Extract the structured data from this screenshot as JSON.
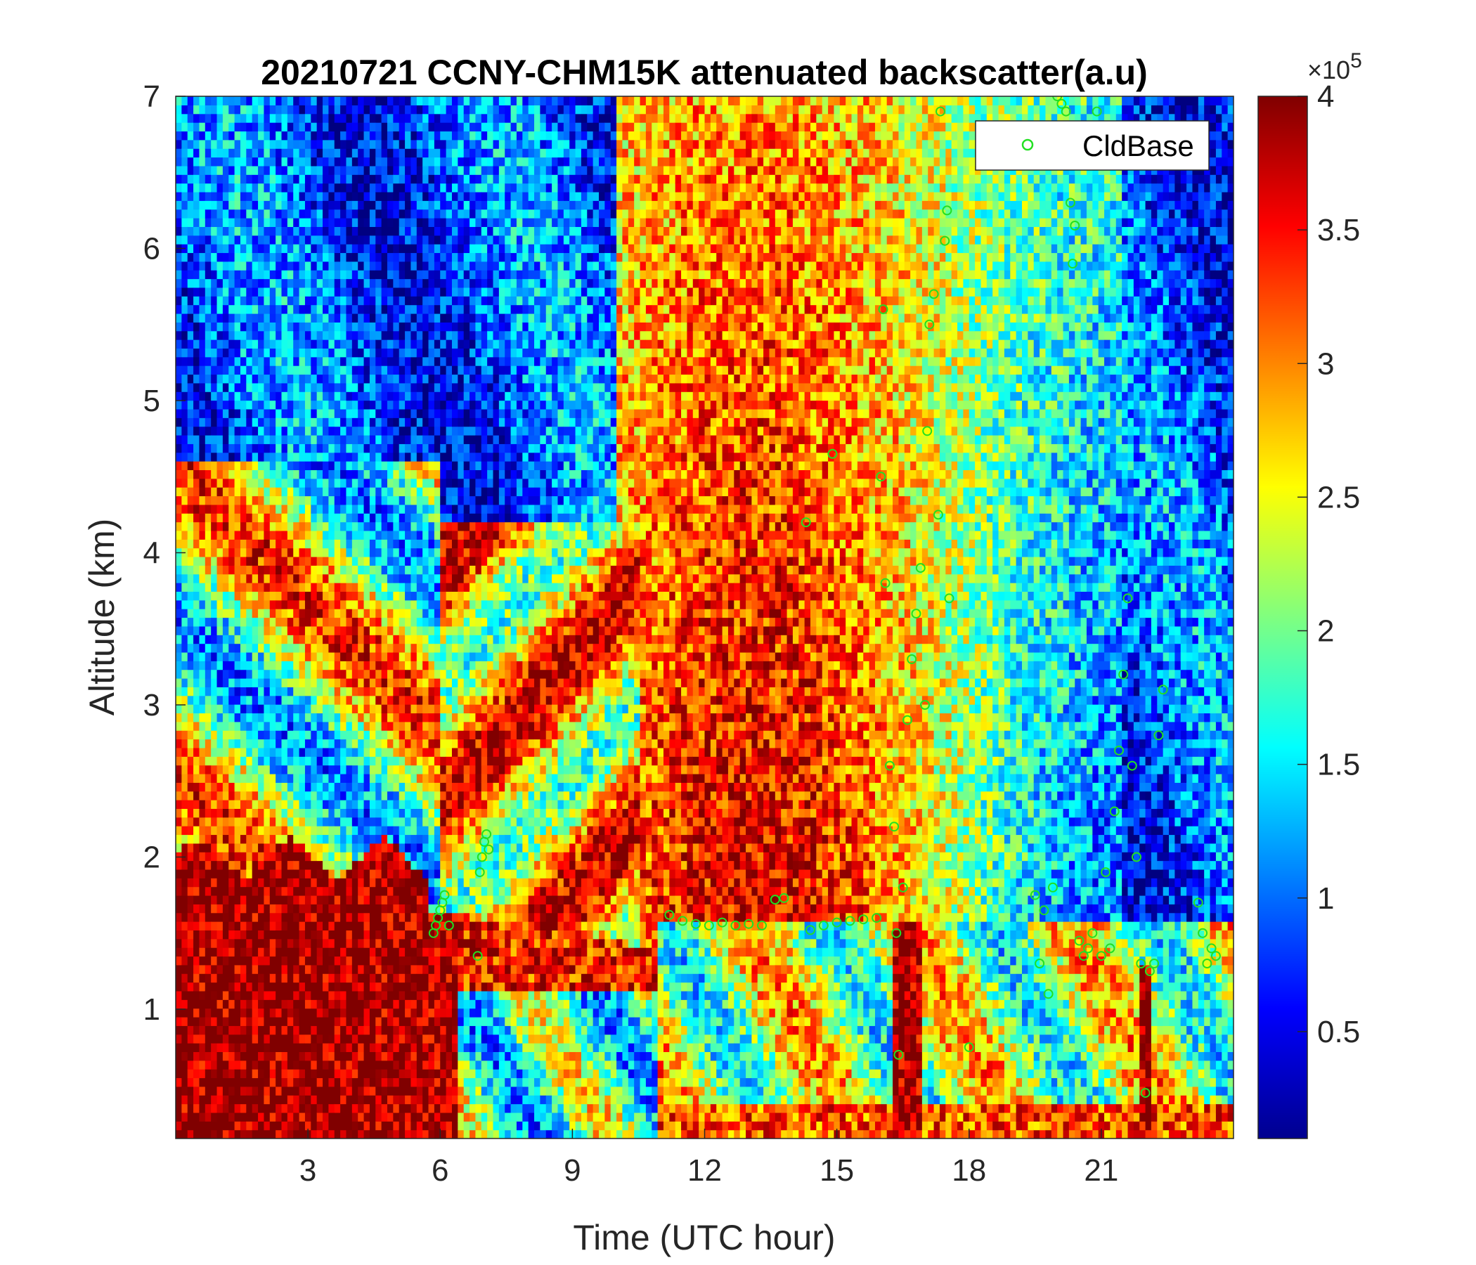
{
  "chart_data": {
    "type": "heatmap",
    "title": "20210721 CCNY-CHM15K attenuated backscatter(a.u)",
    "xlabel": "Time (UTC hour)",
    "ylabel": "Altitude (km)",
    "xlim": [
      0,
      24
    ],
    "ylim": [
      0.15,
      7
    ],
    "xticks": [
      "3",
      "6",
      "9",
      "12",
      "15",
      "18",
      "21"
    ],
    "yticks": [
      "1",
      "2",
      "3",
      "4",
      "5",
      "6",
      "7"
    ],
    "colormap": "jet",
    "colorbar": {
      "range": [
        0.1,
        4
      ],
      "ticks": [
        "0.5",
        "1",
        "1.5",
        "2",
        "2.5",
        "3",
        "3.5",
        "4"
      ],
      "exponent_label": "×10",
      "exponent_power": "5"
    },
    "legend": {
      "placement": "top-right",
      "entries": [
        "CldBase"
      ]
    },
    "cloud_base_series": {
      "name": "CldBase",
      "color": "#22e022",
      "marker": "circle",
      "points": [
        [
          5.85,
          1.5
        ],
        [
          5.9,
          1.55
        ],
        [
          5.95,
          1.6
        ],
        [
          6.0,
          1.65
        ],
        [
          6.05,
          1.7
        ],
        [
          6.1,
          1.75
        ],
        [
          6.2,
          1.55
        ],
        [
          6.85,
          1.35
        ],
        [
          6.9,
          1.9
        ],
        [
          6.95,
          2.0
        ],
        [
          7.0,
          2.1
        ],
        [
          7.05,
          2.15
        ],
        [
          7.1,
          2.05
        ],
        [
          11.2,
          1.62
        ],
        [
          11.5,
          1.58
        ],
        [
          11.8,
          1.56
        ],
        [
          12.1,
          1.55
        ],
        [
          12.4,
          1.57
        ],
        [
          12.7,
          1.55
        ],
        [
          13.0,
          1.56
        ],
        [
          13.3,
          1.55
        ],
        [
          13.6,
          1.72
        ],
        [
          13.8,
          1.73
        ],
        [
          14.3,
          4.2
        ],
        [
          14.4,
          1.52
        ],
        [
          14.7,
          1.55
        ],
        [
          14.9,
          4.65
        ],
        [
          15.0,
          1.57
        ],
        [
          15.3,
          1.58
        ],
        [
          15.6,
          1.59
        ],
        [
          15.9,
          1.6
        ],
        [
          16.0,
          4.5
        ],
        [
          16.05,
          5.6
        ],
        [
          16.1,
          3.8
        ],
        [
          16.2,
          2.6
        ],
        [
          16.3,
          2.2
        ],
        [
          16.35,
          1.5
        ],
        [
          16.4,
          0.7
        ],
        [
          16.5,
          1.8
        ],
        [
          16.6,
          2.9
        ],
        [
          16.7,
          3.3
        ],
        [
          16.8,
          3.6
        ],
        [
          16.9,
          3.9
        ],
        [
          17.0,
          3.0
        ],
        [
          17.05,
          4.8
        ],
        [
          17.1,
          5.5
        ],
        [
          17.2,
          5.7
        ],
        [
          17.3,
          4.25
        ],
        [
          17.35,
          6.9
        ],
        [
          17.45,
          6.05
        ],
        [
          17.5,
          6.25
        ],
        [
          17.55,
          3.7
        ],
        [
          18.0,
          0.75
        ],
        [
          19.5,
          1.75
        ],
        [
          19.6,
          1.3
        ],
        [
          19.7,
          1.65
        ],
        [
          19.8,
          1.1
        ],
        [
          19.9,
          1.8
        ],
        [
          20.0,
          7.0
        ],
        [
          20.1,
          6.95
        ],
        [
          20.2,
          6.9
        ],
        [
          20.3,
          6.3
        ],
        [
          20.35,
          5.9
        ],
        [
          20.4,
          6.15
        ],
        [
          20.5,
          1.45
        ],
        [
          20.6,
          1.35
        ],
        [
          20.7,
          1.4
        ],
        [
          20.8,
          1.5
        ],
        [
          20.9,
          6.9
        ],
        [
          21.0,
          1.35
        ],
        [
          21.1,
          1.9
        ],
        [
          21.2,
          1.4
        ],
        [
          21.3,
          2.3
        ],
        [
          21.4,
          2.7
        ],
        [
          21.5,
          3.2
        ],
        [
          21.6,
          3.7
        ],
        [
          21.7,
          2.6
        ],
        [
          21.8,
          2.0
        ],
        [
          21.9,
          1.3
        ],
        [
          22.0,
          0.45
        ],
        [
          22.1,
          1.25
        ],
        [
          22.2,
          1.3
        ],
        [
          22.3,
          2.8
        ],
        [
          22.4,
          3.1
        ],
        [
          23.2,
          1.7
        ],
        [
          23.3,
          1.5
        ],
        [
          23.4,
          1.3
        ],
        [
          23.5,
          1.4
        ],
        [
          23.6,
          1.35
        ]
      ]
    }
  }
}
